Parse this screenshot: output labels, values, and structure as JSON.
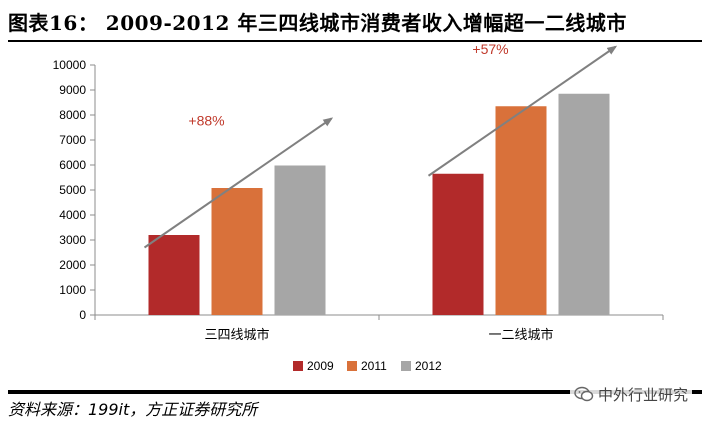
{
  "figure": {
    "title": "图表16：  2009-2012 年三四线城市消费者收入增幅超一二线城市",
    "source": "资料来源：199it，方正证券研究所",
    "watermark": "中外行业研究"
  },
  "chart_data": {
    "type": "bar",
    "categories": [
      "三四线城市",
      "一二线城市"
    ],
    "series": [
      {
        "name": "2009",
        "color": "#b22a2a",
        "values": [
          3200,
          5650
        ]
      },
      {
        "name": "2011",
        "color": "#d9713a",
        "values": [
          5080,
          8350
        ]
      },
      {
        "name": "2012",
        "color": "#a6a6a6",
        "values": [
          5980,
          8850
        ]
      }
    ],
    "ylim": [
      0,
      10000
    ],
    "yticks": [
      "0",
      "1000",
      "2000",
      "3000",
      "4000",
      "5000",
      "6000",
      "7000",
      "8000",
      "9000",
      "10000"
    ],
    "grid": false,
    "legend": "bottom",
    "annotations": [
      {
        "text": "+88%",
        "category": 0,
        "color": "#c0392b"
      },
      {
        "text": "+57%",
        "category": 1,
        "color": "#c0392b"
      }
    ],
    "arrow_color": "#808080"
  }
}
